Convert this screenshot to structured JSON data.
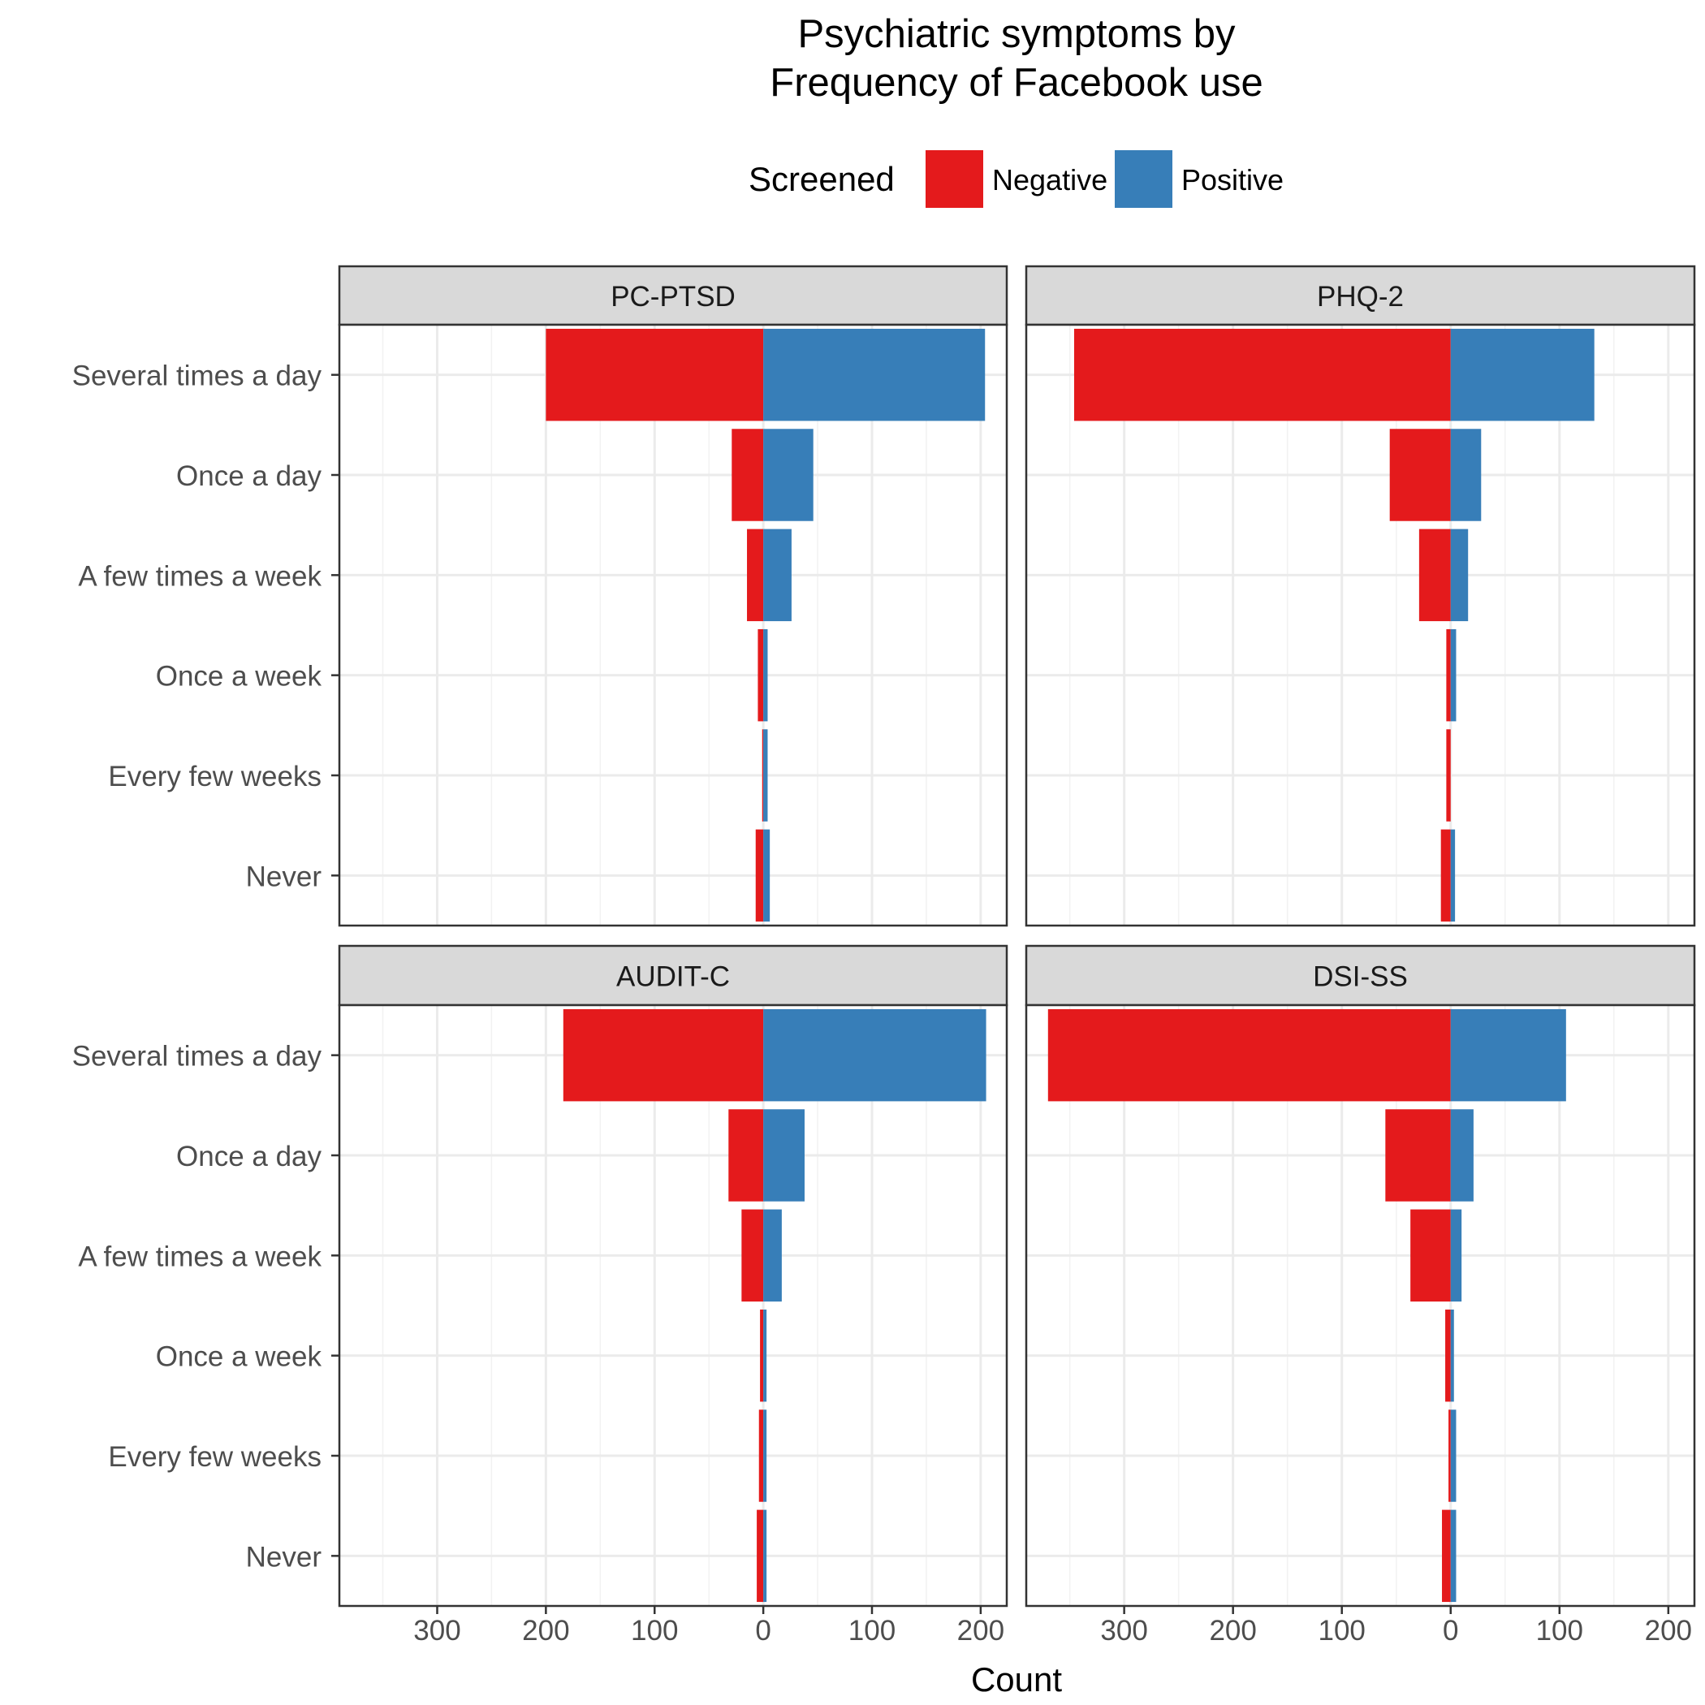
{
  "title_line1": "Psychiatric symptoms by",
  "title_line2": "Frequency of Facebook use",
  "xlabel": "Count",
  "legend": {
    "title": "Screened",
    "items": [
      {
        "key": "negative",
        "label": "Negative",
        "color": "#E41A1C"
      },
      {
        "key": "positive",
        "label": "Positive",
        "color": "#377EB8"
      }
    ]
  },
  "chart_data": {
    "type": "bar",
    "orientation": "horizontal-diverging",
    "categories": [
      "Several times a day",
      "Once a day",
      "A few times a week",
      "Once a week",
      "Every few weeks",
      "Never"
    ],
    "x_tick_values": [
      -300,
      -200,
      -100,
      0,
      100,
      200
    ],
    "x_tick_labels": [
      "300",
      "200",
      "100",
      "0",
      "100",
      "200"
    ],
    "xlim": [
      -390,
      224
    ],
    "grid": true,
    "legend_position": "top",
    "panels": [
      {
        "title": "PC-PTSD",
        "series": [
          {
            "name": "Negative",
            "values": [
              200,
              29,
              15,
              5,
              1,
              7
            ]
          },
          {
            "name": "Positive",
            "values": [
              204,
              46,
              26,
              4,
              4,
              6
            ]
          }
        ]
      },
      {
        "title": "PHQ-2",
        "series": [
          {
            "name": "Negative",
            "values": [
              346,
              56,
              29,
              4,
              4,
              9
            ]
          },
          {
            "name": "Positive",
            "values": [
              132,
              28,
              16,
              5,
              0,
              4
            ]
          }
        ]
      },
      {
        "title": "AUDIT-C",
        "series": [
          {
            "name": "Negative",
            "values": [
              184,
              32,
              20,
              3,
              4,
              6
            ]
          },
          {
            "name": "Positive",
            "values": [
              205,
              38,
              17,
              3,
              3,
              3
            ]
          }
        ]
      },
      {
        "title": "DSI-SS",
        "series": [
          {
            "name": "Negative",
            "values": [
              370,
              60,
              37,
              5,
              2,
              8
            ]
          },
          {
            "name": "Positive",
            "values": [
              106,
              21,
              10,
              3,
              5,
              5
            ]
          }
        ]
      }
    ]
  }
}
